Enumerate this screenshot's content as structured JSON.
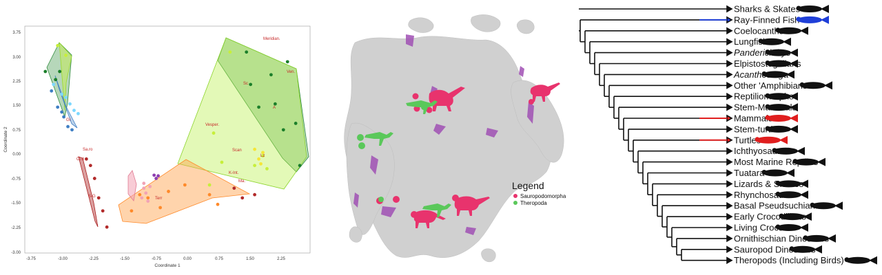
{
  "scatter": {
    "x_label": "Coordinate 1",
    "y_label": "Coordinate 2",
    "x_ticks": [
      "-3.75",
      "-3.00",
      "-2.25",
      "-1.50",
      "-0.75",
      "0.00",
      "0.75",
      "1.50",
      "2.25"
    ],
    "y_ticks": [
      "3.75",
      "3.00",
      "2.25",
      "1.50",
      "0.75",
      "0.00",
      "-0.75",
      "-1.50",
      "-2.25",
      "-3.00"
    ],
    "point_labels": [
      "Meridian.",
      "Ven.",
      "Scan",
      "Vesper.",
      "Terr",
      "Sa.ro",
      "Cl.d",
      "K-Int.",
      "Ma.",
      "A",
      "Lz",
      "Sc",
      "S-G",
      "Gl"
    ]
  },
  "chart_data": {
    "type": "scatter",
    "xlabel": "Coordinate 1",
    "ylabel": "Coordinate 2",
    "xlim": [
      -4.1,
      2.85
    ],
    "ylim": [
      -3.0,
      4.0
    ],
    "groups": [
      {
        "color": "#7dd8ff",
        "points": [
          [
            -3.4,
            2.2
          ],
          [
            -3.2,
            1.9
          ],
          [
            -3.0,
            1.6
          ],
          [
            -2.8,
            1.3
          ],
          [
            -3.1,
            1.8
          ],
          [
            -2.9,
            1.4
          ]
        ]
      },
      {
        "color": "#3f7fc4",
        "points": [
          [
            -3.45,
            2.0
          ],
          [
            -3.3,
            1.5
          ],
          [
            -3.15,
            1.2
          ],
          [
            -3.05,
            0.9
          ],
          [
            -2.95,
            0.8
          ],
          [
            -3.2,
            1.35
          ]
        ]
      },
      {
        "color": "#1b7f2a",
        "points": [
          [
            -3.6,
            2.6
          ],
          [
            -3.35,
            2.35
          ],
          [
            -3.25,
            2.6
          ],
          [
            1.3,
            3.2
          ],
          [
            1.9,
            2.5
          ],
          [
            2.3,
            2.9
          ],
          [
            2.5,
            1.0
          ],
          [
            2.6,
            -0.3
          ],
          [
            2.2,
            0.8
          ],
          [
            1.6,
            1.5
          ],
          [
            1.4,
            2.2
          ],
          [
            2.0,
            1.6
          ]
        ]
      },
      {
        "color": "#c7ef3a",
        "points": [
          [
            -3.1,
            3.1
          ],
          [
            -3.3,
            3.4
          ],
          [
            0.5,
            0.7
          ],
          [
            0.9,
            3.2
          ],
          [
            1.7,
            0.0
          ],
          [
            1.8,
            -0.4
          ],
          [
            1.5,
            -0.3
          ],
          [
            0.4,
            -0.9
          ],
          [
            0.7,
            -0.2
          ]
        ]
      },
      {
        "color": "#ff8a2a",
        "points": [
          [
            -1.5,
            -1.7
          ],
          [
            -1.1,
            -1.3
          ],
          [
            -0.6,
            -1.1
          ],
          [
            -0.2,
            -0.9
          ],
          [
            0.4,
            -1.2
          ],
          [
            0.6,
            -1.5
          ],
          [
            -0.8,
            -1.6
          ],
          [
            -1.3,
            -1.2
          ]
        ]
      },
      {
        "color": "#b22a2a",
        "points": [
          [
            -2.5,
            -0.3
          ],
          [
            -2.4,
            -0.7
          ],
          [
            -2.3,
            -1.3
          ],
          [
            -2.2,
            -1.7
          ],
          [
            -2.1,
            -2.2
          ],
          [
            -2.6,
            -0.1
          ],
          [
            1.0,
            -1.0
          ],
          [
            1.2,
            -1.3
          ],
          [
            1.5,
            -1.2
          ]
        ]
      },
      {
        "color": "#f2a3b5",
        "points": [
          [
            -1.2,
            -1.0
          ],
          [
            -1.15,
            -1.15
          ],
          [
            -1.05,
            -0.95
          ],
          [
            -1.25,
            -1.3
          ],
          [
            -1.1,
            -1.4
          ],
          [
            -1.2,
            -0.85
          ]
        ]
      },
      {
        "color": "#8e3fb0",
        "points": [
          [
            -0.95,
            -0.6
          ],
          [
            -0.9,
            -0.7
          ],
          [
            -0.85,
            -0.62
          ]
        ]
      },
      {
        "color": "#f5e636",
        "points": [
          [
            1.5,
            0.2
          ],
          [
            1.6,
            -0.1
          ],
          [
            1.7,
            0.1
          ],
          [
            1.65,
            -0.25
          ]
        ]
      }
    ]
  },
  "map": {
    "legend_title": "Legend",
    "legend_items": [
      {
        "label": "Sauropodomorpha",
        "color": "#e8336d"
      },
      {
        "label": "Theropoda",
        "color": "#5ac85a"
      }
    ],
    "land_color": "#d0d0d0",
    "outcrop_color": "#a050b4"
  },
  "tree": {
    "taxa": [
      {
        "name": "Sharks & Skates",
        "color": "#111111",
        "italic": false
      },
      {
        "name": "Ray-Finned  Fish",
        "color": "#1f3fd8",
        "italic": false
      },
      {
        "name": "Coelocanths",
        "color": "#111111",
        "italic": false
      },
      {
        "name": "Lungfish",
        "color": "#111111",
        "italic": false
      },
      {
        "name": "Panderichthys",
        "color": "#111111",
        "italic": true
      },
      {
        "name": "Elpistostegalians",
        "color": "#111111",
        "italic": false
      },
      {
        "name": "Acanthostega",
        "color": "#111111",
        "italic": true
      },
      {
        "name": "Other 'Amphibians'",
        "color": "#111111",
        "italic": false
      },
      {
        "name": "Reptiliomorphs",
        "color": "#111111",
        "italic": false
      },
      {
        "name": "Stem-Mammals",
        "color": "#111111",
        "italic": false
      },
      {
        "name": "Mammals",
        "color": "#e01e1e",
        "italic": false
      },
      {
        "name": "Stem-turtles",
        "color": "#111111",
        "italic": false
      },
      {
        "name": "Turtles",
        "color": "#e01e1e",
        "italic": false
      },
      {
        "name": "Ichthyosaurs",
        "color": "#111111",
        "italic": false
      },
      {
        "name": "Most Marine Reptiles",
        "color": "#111111",
        "italic": false
      },
      {
        "name": "Tuatara",
        "color": "#111111",
        "italic": false
      },
      {
        "name": "Lizards & Snakes",
        "color": "#111111",
        "italic": false
      },
      {
        "name": "Rhynchosaurs",
        "color": "#111111",
        "italic": false
      },
      {
        "name": "Basal Pseudsuchians",
        "color": "#111111",
        "italic": false
      },
      {
        "name": "Early Crocodilians",
        "color": "#111111",
        "italic": false
      },
      {
        "name": "Living Crocs",
        "color": "#111111",
        "italic": false
      },
      {
        "name": "Ornithischian Dinosaurs",
        "color": "#111111",
        "italic": false
      },
      {
        "name": "Sauropod Dinosaurs",
        "color": "#111111",
        "italic": false
      },
      {
        "name": "Theropods (Including Birds)",
        "color": "#111111",
        "italic": false
      }
    ]
  }
}
